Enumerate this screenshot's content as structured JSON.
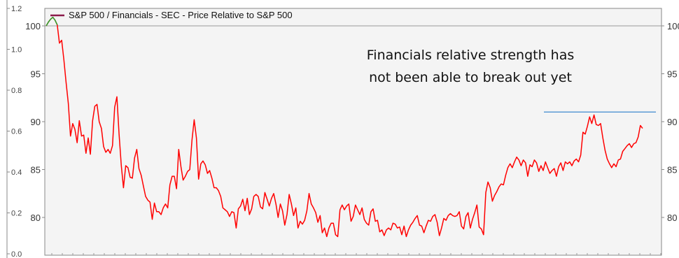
{
  "chart_data": {
    "type": "line",
    "title": "",
    "legend": "S&P 500 / Financials - SEC - Price Relative to S&P 500",
    "annotation_lines": [
      "Financials relative strength has",
      "not been able to break out yet"
    ],
    "left_axis": {
      "ticks": [
        "100",
        "95",
        "90",
        "85",
        "80"
      ],
      "ylim": [
        76,
        102
      ]
    },
    "right_axis": {
      "ticks": [
        "100",
        "95",
        "90",
        "85",
        "80"
      ]
    },
    "outer_axis": {
      "ticks": [
        "1.2",
        "1.0",
        "0.8",
        "0.6",
        "0.4",
        "0.2",
        "0.0"
      ]
    },
    "reference_level": 91,
    "baseline_level": 100,
    "series": [
      {
        "color": "#ff0000",
        "highlight_color": "#2ca02c",
        "highlight_points": 6,
        "values": [
          100,
          100.4,
          100.7,
          100.9,
          100.6,
          100.1,
          98.2,
          98.5,
          96.5,
          94.1,
          91.9,
          88.5,
          89.8,
          89.2,
          87.8,
          90.1,
          88.5,
          88.6,
          86.7,
          88.3,
          86.6,
          90.1,
          91.6,
          91.8,
          90.0,
          89.3,
          87.4,
          86.8,
          87.1,
          86.7,
          87.5,
          91.5,
          92.6,
          88.7,
          85.4,
          83.1,
          85.4,
          85.2,
          84.2,
          84.1,
          86.2,
          87.1,
          85.1,
          84.4,
          83.3,
          82.2,
          81.8,
          81.6,
          79.8,
          81.5,
          80.6,
          80.6,
          80.3,
          81.0,
          81.4,
          81.0,
          83.4,
          84.3,
          84.3,
          83.0,
          87.1,
          85.3,
          83.9,
          84.3,
          84.8,
          85.0,
          88.1,
          90.2,
          88.3,
          84.0,
          85.6,
          85.9,
          85.5,
          84.6,
          84.9,
          84.1,
          83.1,
          83.1,
          82.8,
          82.2,
          81.0,
          80.8,
          80.6,
          80.1,
          80.6,
          80.5,
          78.9,
          80.9,
          81.2,
          81.9,
          80.7,
          82.0,
          80.3,
          80.9,
          82.2,
          82.4,
          82.2,
          81.1,
          80.9,
          82.6,
          81.9,
          81.2,
          82.0,
          82.5,
          81.4,
          80.0,
          81.4,
          80.7,
          79.2,
          80.3,
          82.4,
          81.4,
          80.2,
          81.0,
          78.9,
          79.6,
          79.3,
          79.7,
          80.7,
          82.5,
          81.4,
          81.0,
          80.5,
          79.5,
          80.2,
          78.4,
          78.9,
          78.0,
          78.9,
          79.4,
          79.4,
          78.2,
          78.0,
          80.8,
          81.3,
          80.8,
          81.2,
          81.4,
          79.6,
          80.1,
          81.3,
          80.8,
          80.3,
          81.0,
          79.8,
          79.4,
          79.2,
          80.6,
          80.9,
          79.6,
          79.7,
          78.5,
          78.7,
          78.1,
          78.7,
          78.9,
          78.7,
          79.4,
          79.3,
          78.9,
          79.0,
          78.2,
          79.1,
          78.0,
          78.7,
          79.2,
          79.5,
          79.9,
          80.2,
          79.2,
          79.1,
          78.4,
          79.1,
          79.7,
          79.6,
          80.1,
          80.3,
          79.5,
          78.1,
          78.9,
          79.9,
          79.7,
          80.2,
          80.4,
          80.2,
          80.1,
          80.2,
          80.6,
          79.1,
          78.8,
          80.1,
          80.5,
          78.9,
          79.8,
          80.5,
          81.3,
          79.0,
          78.8,
          78.2,
          82.6,
          83.7,
          83.1,
          81.7,
          82.3,
          82.7,
          83.2,
          83.5,
          83.4,
          84.4,
          85.2,
          85.6,
          85.2,
          85.8,
          86.3,
          86.0,
          85.4,
          86.0,
          85.7,
          84.3,
          85.5,
          85.3,
          86.0,
          85.7,
          84.8,
          85.4,
          84.9,
          85.8,
          85.2,
          84.6,
          84.9,
          85.1,
          84.3,
          85.3,
          85.7,
          84.9,
          85.8,
          85.6,
          85.8,
          85.4,
          85.9,
          86.1,
          85.8,
          86.5,
          88.9,
          88.7,
          89.5,
          90.5,
          89.8,
          90.7,
          89.7,
          89.6,
          89.8,
          88.3,
          87.0,
          86.1,
          85.6,
          85.2,
          85.6,
          85.3,
          86.0,
          86.1,
          86.9,
          87.2,
          87.5,
          87.7,
          87.3,
          87.7,
          87.8,
          88.4,
          89.6,
          89.3
        ]
      }
    ]
  }
}
